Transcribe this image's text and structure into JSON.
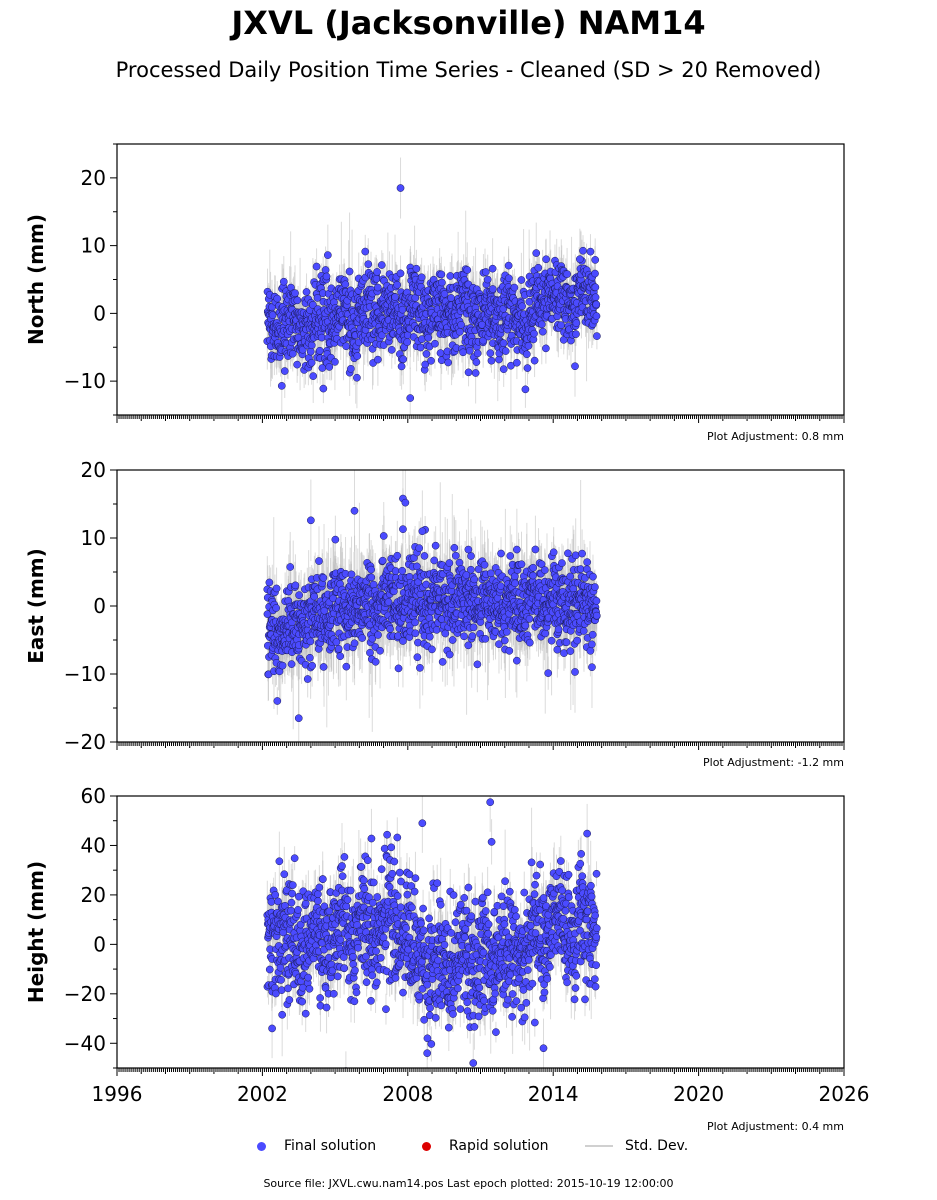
{
  "header": {
    "title": "JXVL (Jacksonville) NAM14",
    "subtitle": "Processed Daily Position Time Series - Cleaned (SD > 20 Removed)"
  },
  "legend": {
    "final": "Final solution",
    "rapid": "Rapid solution",
    "stddev": "Std. Dev."
  },
  "footer": {
    "source": "Source file: JXVL.cwu.nam14.pos  Last epoch plotted: 2015-10-19 12:00:00"
  },
  "colors": {
    "final": "#4b4bff",
    "rapid": "#dd0000",
    "stddev": "#bdbdbd"
  },
  "chart_data": [
    {
      "type": "scatter",
      "name": "north",
      "ylabel": "North (mm)",
      "ylim": [
        -15,
        25
      ],
      "yticks": [
        -10,
        0,
        10,
        20
      ],
      "xlim": [
        1996,
        2026
      ],
      "adjustment": "Plot Adjustment: 0.8 mm",
      "x_range_data": [
        2002.2,
        2015.8
      ],
      "typical_sd": 3,
      "segments": [
        {
          "x": 2002.2,
          "y": -2.0,
          "spread": 3
        },
        {
          "x": 2004.5,
          "y": -1.0,
          "spread": 3
        },
        {
          "x": 2007.0,
          "y": 0.0,
          "spread": 3
        },
        {
          "x": 2010.0,
          "y": 0.0,
          "spread": 3
        },
        {
          "x": 2013.0,
          "y": -1.0,
          "spread": 3
        },
        {
          "x": 2013.5,
          "y": 2.0,
          "spread": 2.5
        },
        {
          "x": 2015.8,
          "y": 2.5,
          "spread": 2.5
        }
      ],
      "outliers": [
        {
          "x": 2007.7,
          "y": 18.5
        },
        {
          "x": 2004.7,
          "y": 8.6
        },
        {
          "x": 2013.3,
          "y": 8.9
        },
        {
          "x": 2002.8,
          "y": -10.7
        },
        {
          "x": 2008.1,
          "y": -12.5
        },
        {
          "x": 2005.9,
          "y": -9.5
        },
        {
          "x": 2010.8,
          "y": -8.8
        },
        {
          "x": 2014.9,
          "y": -7.8
        },
        {
          "x": 2011.5,
          "y": 6.6
        },
        {
          "x": 2015.1,
          "y": 8.0
        }
      ]
    },
    {
      "type": "scatter",
      "name": "east",
      "ylabel": "East (mm)",
      "ylim": [
        -20,
        20
      ],
      "yticks": [
        -20,
        -10,
        0,
        10,
        20
      ],
      "xlim": [
        1996,
        2026
      ],
      "adjustment": "Plot Adjustment: -1.2 mm",
      "x_range_data": [
        2002.2,
        2015.8
      ],
      "typical_sd": 4,
      "segments": [
        {
          "x": 2002.2,
          "y": -3.5,
          "spread": 3
        },
        {
          "x": 2005.0,
          "y": -1.0,
          "spread": 3
        },
        {
          "x": 2008.0,
          "y": 1.0,
          "spread": 3
        },
        {
          "x": 2011.0,
          "y": 0.5,
          "spread": 3
        },
        {
          "x": 2015.8,
          "y": 0.0,
          "spread": 3
        }
      ],
      "outliers": [
        {
          "x": 2007.8,
          "y": 15.8
        },
        {
          "x": 2007.9,
          "y": 15.2
        },
        {
          "x": 2005.8,
          "y": 14.0
        },
        {
          "x": 2004.0,
          "y": 12.6
        },
        {
          "x": 2007.8,
          "y": 11.3
        },
        {
          "x": 2008.6,
          "y": 11.0
        },
        {
          "x": 2003.5,
          "y": -16.5
        },
        {
          "x": 2014.9,
          "y": -9.7
        },
        {
          "x": 2008.5,
          "y": -9.1
        },
        {
          "x": 2015.6,
          "y": -9.0
        },
        {
          "x": 2012.5,
          "y": 8.3
        },
        {
          "x": 2010.5,
          "y": 8.3
        }
      ]
    },
    {
      "type": "scatter",
      "name": "height",
      "ylabel": "Height (mm)",
      "ylim": [
        -50,
        60
      ],
      "yticks": [
        -40,
        -20,
        0,
        20,
        40,
        60
      ],
      "xlim": [
        1996,
        2026
      ],
      "xticks": [
        1996,
        2002,
        2008,
        2014,
        2020,
        2026
      ],
      "adjustment": "Plot Adjustment: 0.4 mm",
      "x_range_data": [
        2002.2,
        2015.8
      ],
      "typical_sd": 8,
      "segments": [
        {
          "x": 2002.2,
          "y": 0.0,
          "spread": 12
        },
        {
          "x": 2007.5,
          "y": 8.0,
          "spread": 12
        },
        {
          "x": 2009.0,
          "y": -8.0,
          "spread": 12
        },
        {
          "x": 2012.0,
          "y": -5.0,
          "spread": 12
        },
        {
          "x": 2014.0,
          "y": 8.0,
          "spread": 11
        },
        {
          "x": 2015.8,
          "y": 6.0,
          "spread": 11
        }
      ],
      "outliers": [
        {
          "x": 2011.4,
          "y": 57.5
        },
        {
          "x": 2008.6,
          "y": 49.0
        },
        {
          "x": 2015.4,
          "y": 44.8
        },
        {
          "x": 2010.7,
          "y": -48.0
        },
        {
          "x": 2008.8,
          "y": -44.0
        },
        {
          "x": 2013.6,
          "y": -42.0
        },
        {
          "x": 2002.7,
          "y": 33.6
        },
        {
          "x": 2002.4,
          "y": -34.0
        },
        {
          "x": 2006.5,
          "y": 42.8
        }
      ]
    }
  ]
}
